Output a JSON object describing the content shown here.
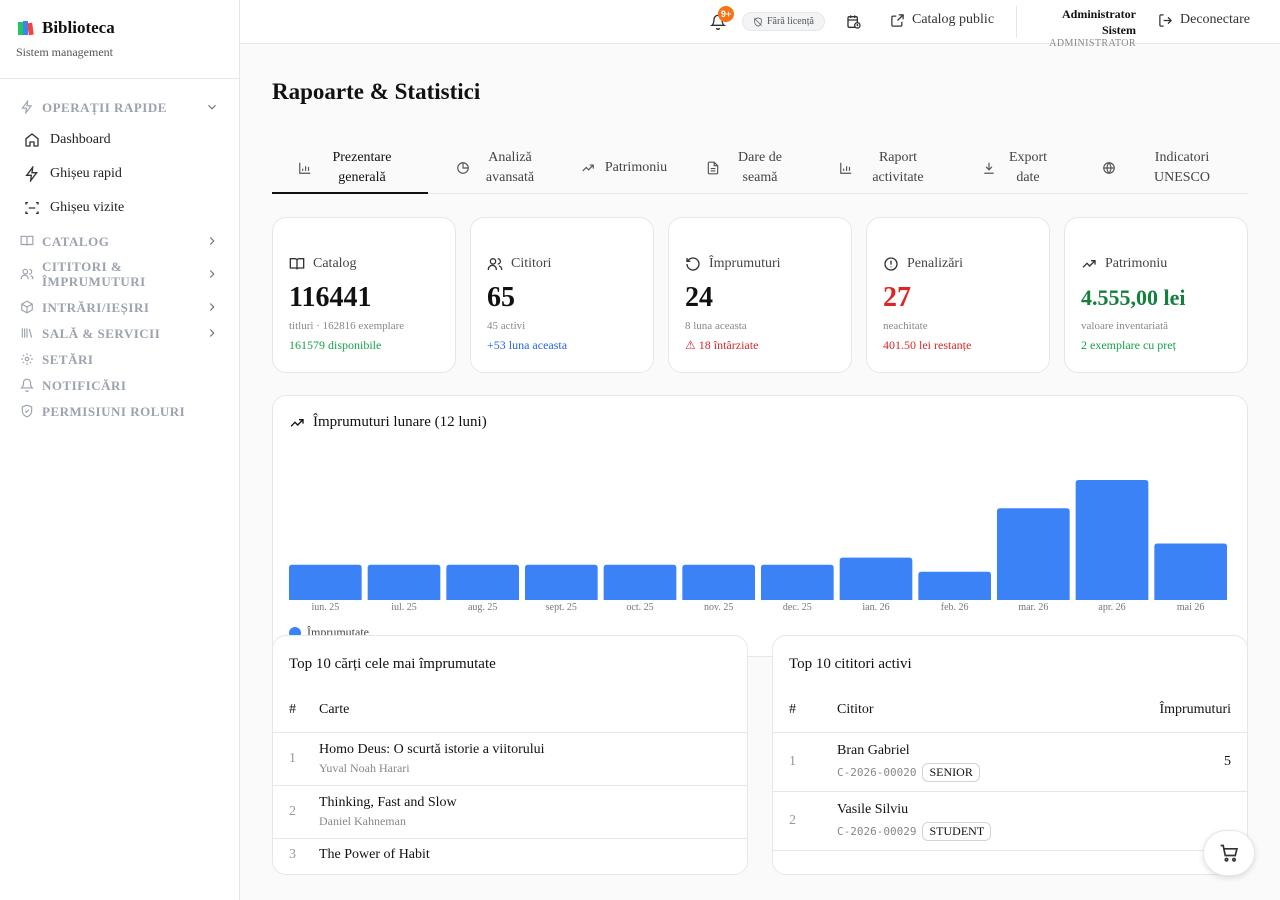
{
  "brand": {
    "title": "Biblioteca",
    "subtitle": "Sistem management"
  },
  "sidebar": {
    "sections": [
      {
        "label": "OPERAȚII RAPIDE",
        "icon": "zap-icon",
        "expanded": true,
        "items": [
          {
            "label": "Dashboard",
            "icon": "home-icon"
          },
          {
            "label": "Ghișeu rapid",
            "icon": "zap-icon"
          },
          {
            "label": "Ghișeu vizite",
            "icon": "scan-icon"
          }
        ]
      },
      {
        "label": "CATALOG",
        "icon": "book-icon"
      },
      {
        "label": "CITITORI & ÎMPRUMUTURI",
        "icon": "users-icon"
      },
      {
        "label": "INTRĂRI/IEȘIRI",
        "icon": "package-icon"
      },
      {
        "label": "SALĂ & SERVICII",
        "icon": "library-icon"
      },
      {
        "label": "SETĂRI",
        "icon": "gear-icon"
      },
      {
        "label": "NOTIFICĂRI",
        "icon": "bell-icon"
      },
      {
        "label": "PERMISIUNI ROLURI",
        "icon": "shield-icon"
      }
    ]
  },
  "topbar": {
    "notif_badge": "9+",
    "license": "Fără licență",
    "catalog_public": "Catalog public",
    "user_name": "Administrator Sistem",
    "user_role": "ADMINISTRATOR",
    "logout": "Deconectare"
  },
  "page": {
    "title": "Rapoarte & Statistici"
  },
  "tabs": [
    {
      "label": "Prezentare generală",
      "icon": "bar-chart-icon",
      "active": true
    },
    {
      "label": "Analiză avansată",
      "icon": "pie-chart-icon"
    },
    {
      "label": "Patrimoniu",
      "icon": "trending-up-icon"
    },
    {
      "label": "Dare de seamă",
      "icon": "file-text-icon"
    },
    {
      "label": "Raport activitate",
      "icon": "bar-chart-icon"
    },
    {
      "label": "Export date",
      "icon": "download-icon"
    },
    {
      "label": "Indicatori UNESCO",
      "icon": "globe-icon"
    }
  ],
  "stats": [
    {
      "title": "Catalog",
      "icon": "book-open-icon",
      "value": "116441",
      "sub": "titluri · 162816 exemplare",
      "foot": "161579 disponibile",
      "foot_color": "#16a34a"
    },
    {
      "title": "Cititori",
      "icon": "users-icon",
      "value": "65",
      "sub": "45 activi",
      "foot": "+53 luna aceasta",
      "foot_color": "#2563eb"
    },
    {
      "title": "Împrumuturi",
      "icon": "rotate-icon",
      "value": "24",
      "sub": "8 luna aceasta",
      "foot": "18 întârziate",
      "foot_color": "#dc2626"
    },
    {
      "title": "Penalizări",
      "icon": "alert-circle-icon",
      "value": "27",
      "sub": "neachitate",
      "foot": "401.50 lei restanțe",
      "foot_color": "#dc2626"
    },
    {
      "title": "Patrimoniu",
      "icon": "trending-up-icon",
      "value": "4.555,00 lei",
      "sub": "valoare inventariată",
      "foot": "2 exemplare cu preț",
      "foot_color": "#16a34a"
    }
  ],
  "chart_data": {
    "type": "bar",
    "title": "Împrumuturi lunare (12 luni)",
    "categories": [
      "iun. 25",
      "iul. 25",
      "aug. 25",
      "sept. 25",
      "oct. 25",
      "nov. 25",
      "dec. 25",
      "ian. 26",
      "feb. 26",
      "mar. 26",
      "apr. 26",
      "mai 26"
    ],
    "series": [
      {
        "name": "Împrumutate",
        "color": "#3b82f6",
        "values": [
          5,
          5,
          5,
          5,
          5,
          5,
          5,
          6,
          4,
          13,
          17,
          8
        ]
      }
    ],
    "ylim": [
      0,
      17
    ],
    "grid": false,
    "legend": "bottom-left"
  },
  "top_books": {
    "title": "Top 10 cărți cele mai împrumutate",
    "headers": [
      "#",
      "Carte"
    ],
    "rows": [
      {
        "idx": "1",
        "title": "Homo Deus: O scurtă istorie a viitorului",
        "author": "Yuval Noah Harari"
      },
      {
        "idx": "2",
        "title": "Thinking, Fast and Slow",
        "author": "Daniel Kahneman"
      },
      {
        "idx": "3",
        "title": "The Power of Habit",
        "author": ""
      }
    ]
  },
  "top_readers": {
    "title": "Top 10 cititori activi",
    "headers": [
      "#",
      "Cititor",
      "Împrumuturi"
    ],
    "rows": [
      {
        "idx": "1",
        "name": "Bran Gabriel",
        "code": "C-2026-00020",
        "badge": "SENIOR",
        "count": "5"
      },
      {
        "idx": "2",
        "name": "Vasile Silviu",
        "code": "C-2026-00029",
        "badge": "STUDENT",
        "count": ""
      }
    ]
  }
}
